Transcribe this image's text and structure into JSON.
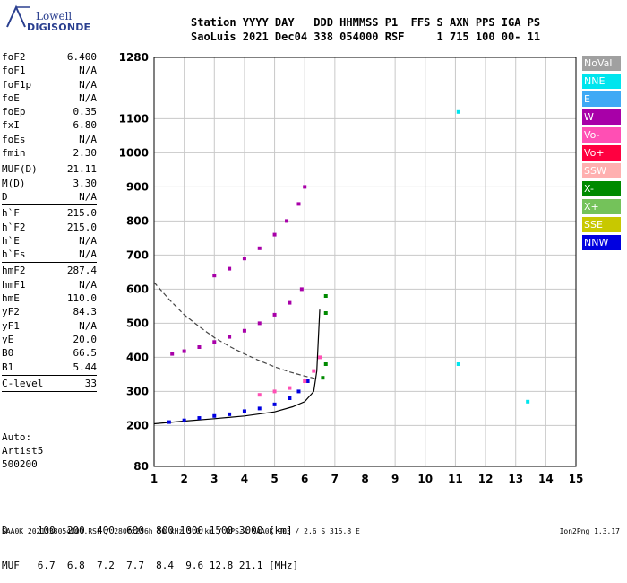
{
  "logo": {
    "top": "Lowell",
    "bottom": "DIGISONDE"
  },
  "header": {
    "line1": "Station YYYY DAY   DDD HHMMSS P1  FFS S AXN PPS IGA PS",
    "line2": "SaoLuis 2021 Dec04 338 054000 RSF     1 715 100 00- 11"
  },
  "params": [
    {
      "label": "foF2",
      "value": "6.400"
    },
    {
      "label": "foF1",
      "value": "N/A"
    },
    {
      "label": "foF1p",
      "value": "N/A"
    },
    {
      "label": "foE",
      "value": "N/A"
    },
    {
      "label": "foEp",
      "value": "0.35"
    },
    {
      "label": "fxI",
      "value": "6.80"
    },
    {
      "label": "foEs",
      "value": "N/A"
    },
    {
      "label": "fmin",
      "value": "2.30",
      "sep": true
    },
    {
      "label": "MUF(D)",
      "value": "21.11"
    },
    {
      "label": "M(D)",
      "value": "3.30"
    },
    {
      "label": "D",
      "value": "N/A",
      "sep": true
    },
    {
      "label": "h`F",
      "value": "215.0"
    },
    {
      "label": "h`F2",
      "value": "215.0"
    },
    {
      "label": "h`E",
      "value": "N/A"
    },
    {
      "label": "h`Es",
      "value": "N/A",
      "sep": true
    },
    {
      "label": "hmF2",
      "value": "287.4"
    },
    {
      "label": "hmF1",
      "value": "N/A"
    },
    {
      "label": "hmE",
      "value": "110.0"
    },
    {
      "label": "yF2",
      "value": "84.3"
    },
    {
      "label": "yF1",
      "value": "N/A"
    },
    {
      "label": "yE",
      "value": "20.0"
    },
    {
      "label": "B0",
      "value": "66.5"
    },
    {
      "label": "B1",
      "value": "5.44",
      "sep": true
    },
    {
      "label": "C-level",
      "value": "33",
      "sep": true
    }
  ],
  "tail": [
    "Auto:",
    "Artist5",
    "500200"
  ],
  "legend": [
    {
      "label": "NoVal",
      "color": "#a0a0a0"
    },
    {
      "label": "NNE",
      "color": "#00e5ee"
    },
    {
      "label": "E",
      "color": "#3fa9f5"
    },
    {
      "label": "W",
      "color": "#a800a8"
    },
    {
      "label": "Vo-",
      "color": "#ff4fb4"
    },
    {
      "label": "Vo+",
      "color": "#ff0040"
    },
    {
      "label": "SSW",
      "color": "#ffb0b0"
    },
    {
      "label": "X-",
      "color": "#008a00"
    },
    {
      "label": "X+",
      "color": "#74c25a"
    },
    {
      "label": "SSE",
      "color": "#c8c800"
    },
    {
      "label": "NNW",
      "color": "#0000e0"
    }
  ],
  "muf_table": {
    "line1": "D     100  200  400  600  800 1000 1500 3000 [km]",
    "line2": "MUF   6.7  6.8  7.2  7.7  8.4  9.6 12.8 21.1 [MHz]"
  },
  "footer": {
    "left": "SAA0K_2021338054000.RSF / 280fx256h 50 kHz 5.0 km / DPS-4 SAA0K 903 / 2.6 S 315.8 E",
    "right": "Ion2Png 1.3.17"
  },
  "chart_data": {
    "type": "scatter",
    "xlim": [
      1,
      15
    ],
    "ylim": [
      80,
      1280
    ],
    "x_ticks": [
      1,
      2,
      3,
      4,
      5,
      6,
      7,
      8,
      9,
      10,
      11,
      12,
      13,
      14,
      15
    ],
    "y_ticks": [
      80,
      200,
      300,
      400,
      500,
      600,
      700,
      800,
      900,
      1000,
      1100,
      1280
    ],
    "grid": true,
    "series": [
      {
        "name": "NNW",
        "color": "#0000e0",
        "points": [
          [
            1.5,
            210
          ],
          [
            2.0,
            215
          ],
          [
            2.5,
            222
          ],
          [
            3.0,
            228
          ],
          [
            3.5,
            233
          ],
          [
            4.0,
            242
          ],
          [
            4.5,
            250
          ],
          [
            5.0,
            262
          ],
          [
            5.5,
            280
          ],
          [
            5.8,
            300
          ],
          [
            6.1,
            330
          ]
        ]
      },
      {
        "name": "W",
        "color": "#a800a8",
        "points": [
          [
            1.6,
            410
          ],
          [
            2.0,
            418
          ],
          [
            2.5,
            430
          ],
          [
            3.0,
            445
          ],
          [
            3.5,
            460
          ],
          [
            4.0,
            478
          ],
          [
            4.5,
            500
          ],
          [
            5.0,
            525
          ],
          [
            5.5,
            560
          ],
          [
            5.9,
            600
          ],
          [
            3.0,
            640
          ],
          [
            3.5,
            660
          ],
          [
            4.0,
            690
          ],
          [
            4.5,
            720
          ],
          [
            5.0,
            760
          ],
          [
            5.4,
            800
          ],
          [
            5.8,
            850
          ],
          [
            6.0,
            900
          ]
        ]
      },
      {
        "name": "Vo-",
        "color": "#ff4fb4",
        "points": [
          [
            4.5,
            290
          ],
          [
            5.0,
            300
          ],
          [
            5.5,
            310
          ],
          [
            6.0,
            330
          ],
          [
            6.3,
            360
          ],
          [
            6.5,
            400
          ]
        ]
      },
      {
        "name": "X-",
        "color": "#008a00",
        "points": [
          [
            6.6,
            340
          ],
          [
            6.7,
            380
          ],
          [
            6.7,
            530
          ],
          [
            6.7,
            580
          ]
        ]
      },
      {
        "name": "NNE",
        "color": "#00e5ee",
        "points": [
          [
            11.1,
            380
          ],
          [
            11.1,
            1120
          ],
          [
            13.4,
            270
          ]
        ]
      }
    ],
    "curves": [
      {
        "name": "trace",
        "style": "solid",
        "points": [
          [
            1.0,
            205
          ],
          [
            2.0,
            213
          ],
          [
            3.0,
            220
          ],
          [
            4.0,
            228
          ],
          [
            5.0,
            240
          ],
          [
            5.6,
            255
          ],
          [
            6.0,
            270
          ],
          [
            6.3,
            300
          ],
          [
            6.4,
            360
          ],
          [
            6.5,
            540
          ]
        ]
      },
      {
        "name": "profile",
        "style": "dashed",
        "points": [
          [
            1.0,
            620
          ],
          [
            1.5,
            570
          ],
          [
            2.0,
            525
          ],
          [
            2.5,
            490
          ],
          [
            3.0,
            458
          ],
          [
            3.5,
            432
          ],
          [
            4.0,
            410
          ],
          [
            4.5,
            390
          ],
          [
            5.0,
            372
          ],
          [
            5.5,
            357
          ],
          [
            6.0,
            345
          ],
          [
            6.4,
            337
          ]
        ]
      }
    ]
  }
}
